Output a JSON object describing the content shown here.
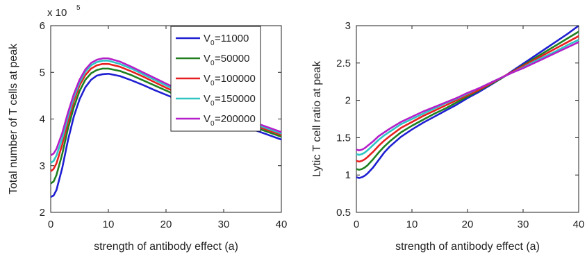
{
  "chart_data": [
    {
      "type": "line",
      "xlabel": "strength of antibody effect (a)",
      "ylabel": "Total number of T cells at peak",
      "exponent_label": "x 10",
      "exponent_power": "5",
      "xlim": [
        0,
        40
      ],
      "ylim": [
        2,
        6
      ],
      "xticks": [
        "0",
        "10",
        "20",
        "30",
        "40"
      ],
      "yticks": [
        "2",
        "3",
        "4",
        "5",
        "6"
      ],
      "legend_placement": "top-right",
      "legend_prefix": "V",
      "legend_subscript": "0",
      "grid": false,
      "series": [
        {
          "name": "=11000",
          "color": "#1f1fd2",
          "x": [
            0,
            0.5,
            1,
            2,
            3,
            4,
            5,
            6,
            7,
            8,
            9,
            10,
            12,
            14,
            16,
            18,
            20,
            25,
            30,
            35,
            40
          ],
          "y": [
            2.33,
            2.36,
            2.48,
            2.95,
            3.55,
            4.05,
            4.42,
            4.68,
            4.84,
            4.93,
            4.96,
            4.97,
            4.92,
            4.83,
            4.73,
            4.62,
            4.52,
            4.26,
            4.01,
            3.78,
            3.56
          ]
        },
        {
          "name": "=50000",
          "color": "#1f7f1f",
          "x": [
            0,
            0.5,
            1,
            2,
            3,
            4,
            5,
            6,
            7,
            8,
            9,
            10,
            12,
            14,
            16,
            18,
            20,
            25,
            30,
            35,
            40
          ],
          "y": [
            2.62,
            2.66,
            2.8,
            3.25,
            3.8,
            4.25,
            4.6,
            4.84,
            4.98,
            5.05,
            5.08,
            5.08,
            5.03,
            4.94,
            4.83,
            4.72,
            4.61,
            4.33,
            4.07,
            3.84,
            3.62
          ]
        },
        {
          "name": "=100000",
          "color": "#e81f1f",
          "x": [
            0,
            0.5,
            1,
            2,
            3,
            4,
            5,
            6,
            7,
            8,
            9,
            10,
            12,
            14,
            16,
            18,
            20,
            25,
            30,
            35,
            40
          ],
          "y": [
            2.88,
            2.93,
            3.05,
            3.45,
            3.95,
            4.38,
            4.72,
            4.94,
            5.08,
            5.15,
            5.18,
            5.18,
            5.12,
            5.02,
            4.91,
            4.79,
            4.67,
            4.39,
            4.12,
            3.88,
            3.66
          ]
        },
        {
          "name": "=150000",
          "color": "#2ec4c4",
          "x": [
            0,
            0.5,
            1,
            2,
            3,
            4,
            5,
            6,
            7,
            8,
            9,
            10,
            12,
            14,
            16,
            18,
            20,
            25,
            30,
            35,
            40
          ],
          "y": [
            3.06,
            3.1,
            3.22,
            3.58,
            4.05,
            4.46,
            4.78,
            5.01,
            5.15,
            5.22,
            5.25,
            5.25,
            5.18,
            5.08,
            4.96,
            4.84,
            4.72,
            4.43,
            4.16,
            3.91,
            3.69
          ]
        },
        {
          "name": "=200000",
          "color": "#b51fc9",
          "x": [
            0,
            0.5,
            1,
            2,
            3,
            4,
            5,
            6,
            7,
            8,
            9,
            10,
            12,
            14,
            16,
            18,
            20,
            25,
            30,
            35,
            40
          ],
          "y": [
            3.22,
            3.26,
            3.36,
            3.7,
            4.14,
            4.53,
            4.84,
            5.06,
            5.2,
            5.27,
            5.3,
            5.3,
            5.23,
            5.12,
            5.0,
            4.88,
            4.76,
            4.47,
            4.19,
            3.94,
            3.72
          ]
        }
      ]
    },
    {
      "type": "line",
      "xlabel": "strength of antibody effect (a)",
      "ylabel": "Lytic T cell ratio at peak",
      "xlim": [
        0,
        40
      ],
      "ylim": [
        0.5,
        3
      ],
      "xticks": [
        "0",
        "10",
        "20",
        "30",
        "40"
      ],
      "yticks": [
        "0.5",
        "1",
        "1.5",
        "2",
        "2.5",
        "3"
      ],
      "grid": false,
      "series": [
        {
          "color": "#1f1fd2",
          "x": [
            0,
            0.5,
            1,
            1.5,
            2,
            3,
            4,
            5,
            6,
            8,
            10,
            12,
            14,
            16,
            18,
            20,
            22,
            24,
            26,
            28,
            30,
            32,
            34,
            36,
            38,
            40
          ],
          "y": [
            0.97,
            0.96,
            0.97,
            0.99,
            1.02,
            1.1,
            1.2,
            1.3,
            1.38,
            1.51,
            1.61,
            1.7,
            1.78,
            1.86,
            1.94,
            2.03,
            2.11,
            2.2,
            2.29,
            2.39,
            2.49,
            2.59,
            2.69,
            2.79,
            2.89,
            3.0
          ]
        },
        {
          "color": "#1f7f1f",
          "x": [
            0,
            0.5,
            1,
            1.5,
            2,
            3,
            4,
            5,
            6,
            8,
            10,
            12,
            14,
            16,
            18,
            20,
            22,
            24,
            26,
            28,
            30,
            32,
            34,
            36,
            38,
            40
          ],
          "y": [
            1.08,
            1.07,
            1.08,
            1.1,
            1.13,
            1.21,
            1.3,
            1.38,
            1.45,
            1.57,
            1.66,
            1.74,
            1.82,
            1.89,
            1.97,
            2.05,
            2.13,
            2.21,
            2.29,
            2.38,
            2.47,
            2.56,
            2.65,
            2.74,
            2.83,
            2.92
          ]
        },
        {
          "color": "#e81f1f",
          "x": [
            0,
            0.5,
            1,
            1.5,
            2,
            3,
            4,
            5,
            6,
            8,
            10,
            12,
            14,
            16,
            18,
            20,
            22,
            24,
            26,
            28,
            30,
            32,
            34,
            36,
            38,
            40
          ],
          "y": [
            1.19,
            1.18,
            1.19,
            1.21,
            1.24,
            1.31,
            1.39,
            1.46,
            1.52,
            1.63,
            1.71,
            1.79,
            1.86,
            1.93,
            2.0,
            2.07,
            2.14,
            2.22,
            2.3,
            2.38,
            2.46,
            2.54,
            2.62,
            2.7,
            2.78,
            2.86
          ]
        },
        {
          "color": "#2ec4c4",
          "x": [
            0,
            0.5,
            1,
            1.5,
            2,
            3,
            4,
            5,
            6,
            8,
            10,
            12,
            14,
            16,
            18,
            20,
            22,
            24,
            26,
            28,
            30,
            32,
            34,
            36,
            38,
            40
          ],
          "y": [
            1.28,
            1.27,
            1.28,
            1.3,
            1.33,
            1.4,
            1.47,
            1.53,
            1.58,
            1.68,
            1.75,
            1.82,
            1.89,
            1.96,
            2.02,
            2.09,
            2.16,
            2.23,
            2.3,
            2.37,
            2.44,
            2.52,
            2.59,
            2.66,
            2.74,
            2.81
          ]
        },
        {
          "color": "#b51fc9",
          "x": [
            0,
            0.5,
            1,
            1.5,
            2,
            3,
            4,
            5,
            6,
            8,
            10,
            12,
            14,
            16,
            18,
            20,
            22,
            24,
            26,
            28,
            30,
            32,
            34,
            36,
            38,
            40
          ],
          "y": [
            1.34,
            1.33,
            1.34,
            1.36,
            1.39,
            1.45,
            1.52,
            1.57,
            1.62,
            1.71,
            1.78,
            1.85,
            1.91,
            1.97,
            2.03,
            2.1,
            2.16,
            2.23,
            2.3,
            2.37,
            2.43,
            2.5,
            2.57,
            2.64,
            2.71,
            2.78
          ]
        }
      ]
    }
  ]
}
